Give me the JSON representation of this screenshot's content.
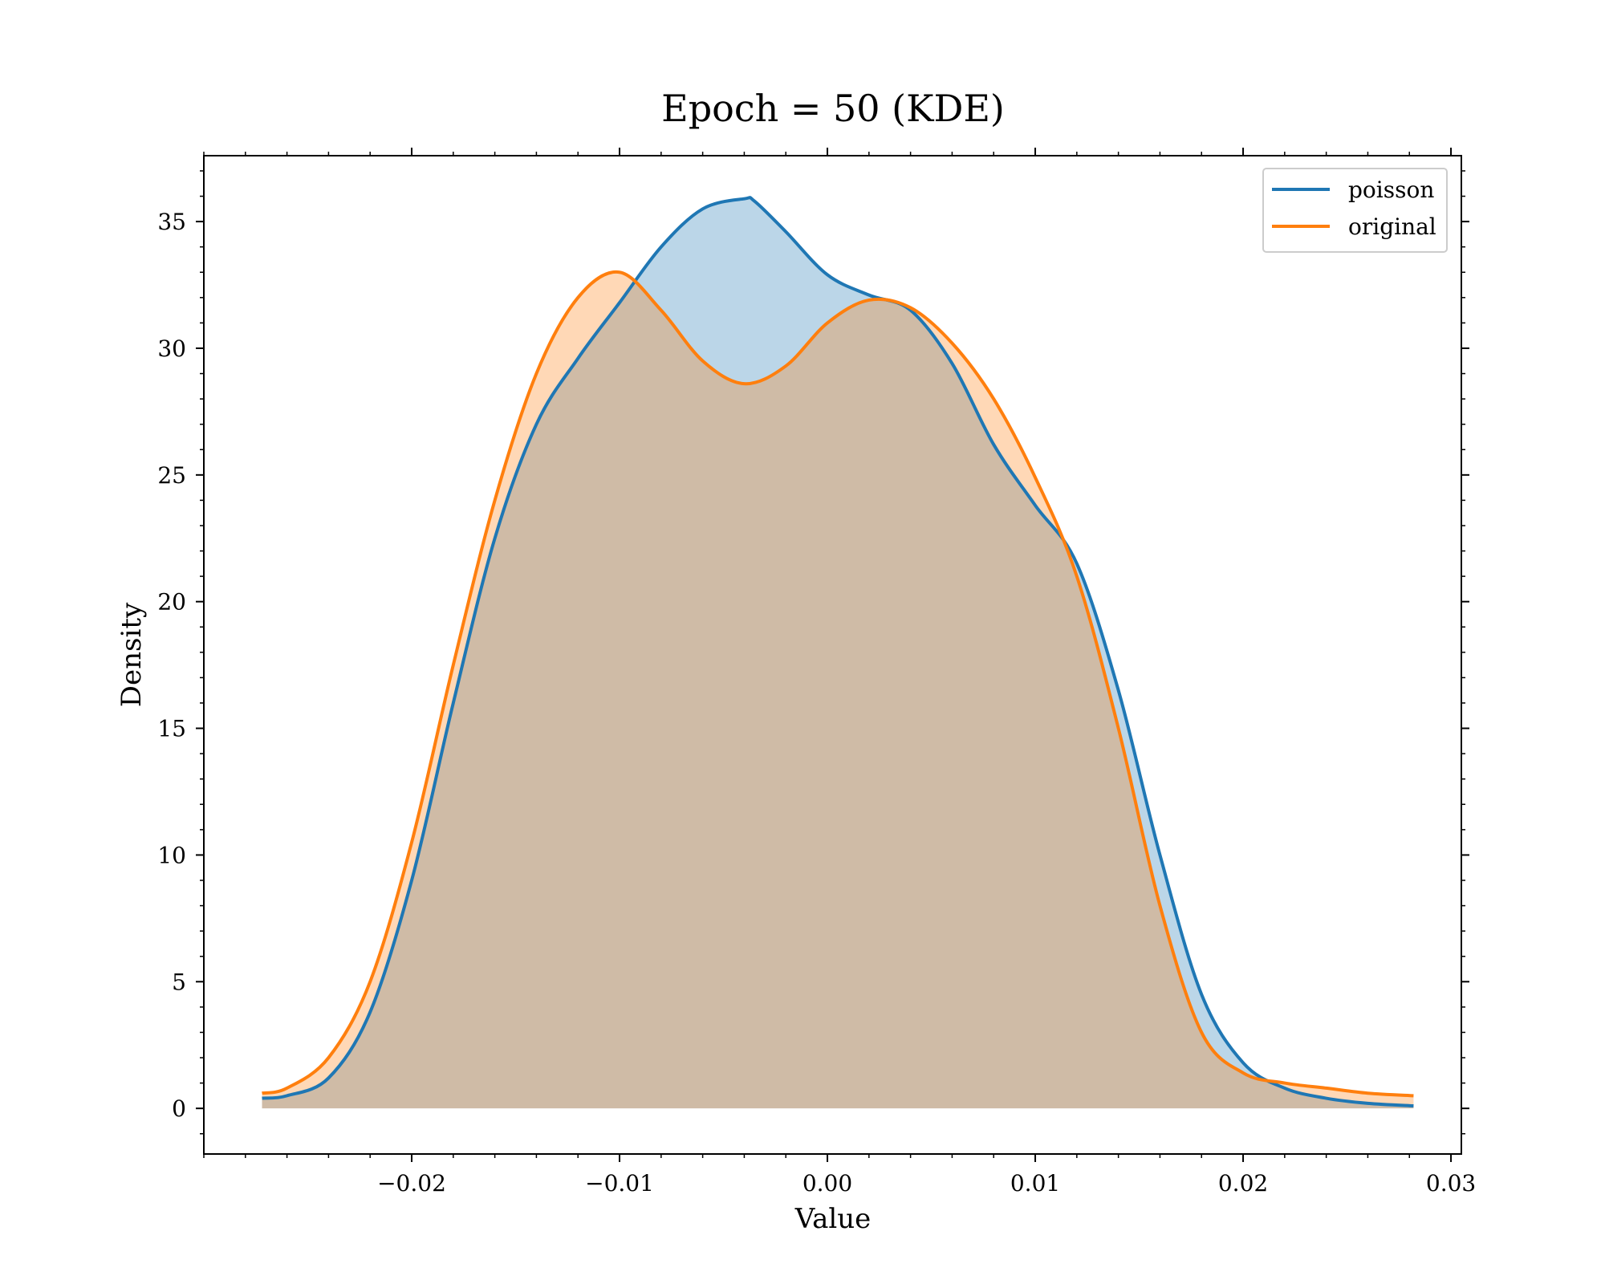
{
  "chart_data": {
    "type": "area",
    "title": "Epoch = 50 (KDE)",
    "xlabel": "Value",
    "ylabel": "Density",
    "xlim": [
      -0.03,
      0.0305
    ],
    "ylim": [
      -1.8,
      37.6
    ],
    "xticks": [
      -0.02,
      -0.01,
      0.0,
      0.01,
      0.02,
      0.03
    ],
    "xtick_labels": [
      "−0.02",
      "−0.01",
      "0.00",
      "0.01",
      "0.02",
      "0.03"
    ],
    "yticks": [
      0,
      5,
      10,
      15,
      20,
      25,
      30,
      35
    ],
    "ytick_labels": [
      "0",
      "5",
      "10",
      "15",
      "20",
      "25",
      "30",
      "35"
    ],
    "x_minor_step": 0.002,
    "y_minor_step": 1,
    "grid": false,
    "legend_position": "top-right",
    "series": [
      {
        "name": "poisson",
        "color": "#1f77b4",
        "fill_opacity": 0.3,
        "x": [
          -0.0272,
          -0.026,
          -0.024,
          -0.022,
          -0.02,
          -0.018,
          -0.016,
          -0.014,
          -0.012,
          -0.01,
          -0.008,
          -0.006,
          -0.004,
          -0.0035,
          -0.002,
          0.0,
          0.002,
          0.004,
          0.006,
          0.008,
          0.01,
          0.012,
          0.014,
          0.016,
          0.018,
          0.02,
          0.022,
          0.024,
          0.026,
          0.0282
        ],
        "y": [
          0.4,
          0.5,
          1.2,
          3.8,
          9.0,
          16.0,
          22.5,
          27.0,
          29.6,
          31.8,
          34.0,
          35.5,
          35.9,
          35.8,
          34.6,
          32.9,
          32.1,
          31.5,
          29.4,
          26.2,
          23.8,
          21.5,
          16.5,
          10.0,
          4.5,
          1.8,
          0.8,
          0.4,
          0.2,
          0.1
        ]
      },
      {
        "name": "original",
        "color": "#ff7f0e",
        "fill_opacity": 0.3,
        "x": [
          -0.0272,
          -0.026,
          -0.024,
          -0.022,
          -0.02,
          -0.018,
          -0.016,
          -0.014,
          -0.012,
          -0.01,
          -0.008,
          -0.006,
          -0.004,
          -0.002,
          0.0,
          0.002,
          0.004,
          0.006,
          0.008,
          0.01,
          0.012,
          0.014,
          0.016,
          0.018,
          0.02,
          0.022,
          0.024,
          0.026,
          0.0282
        ],
        "y": [
          0.6,
          0.8,
          2.0,
          5.0,
          10.5,
          17.5,
          24.0,
          29.0,
          32.0,
          33.0,
          31.5,
          29.5,
          28.6,
          29.3,
          31.0,
          31.9,
          31.6,
          30.2,
          28.0,
          24.9,
          21.0,
          15.0,
          8.0,
          3.0,
          1.4,
          1.0,
          0.8,
          0.6,
          0.5
        ]
      }
    ]
  }
}
